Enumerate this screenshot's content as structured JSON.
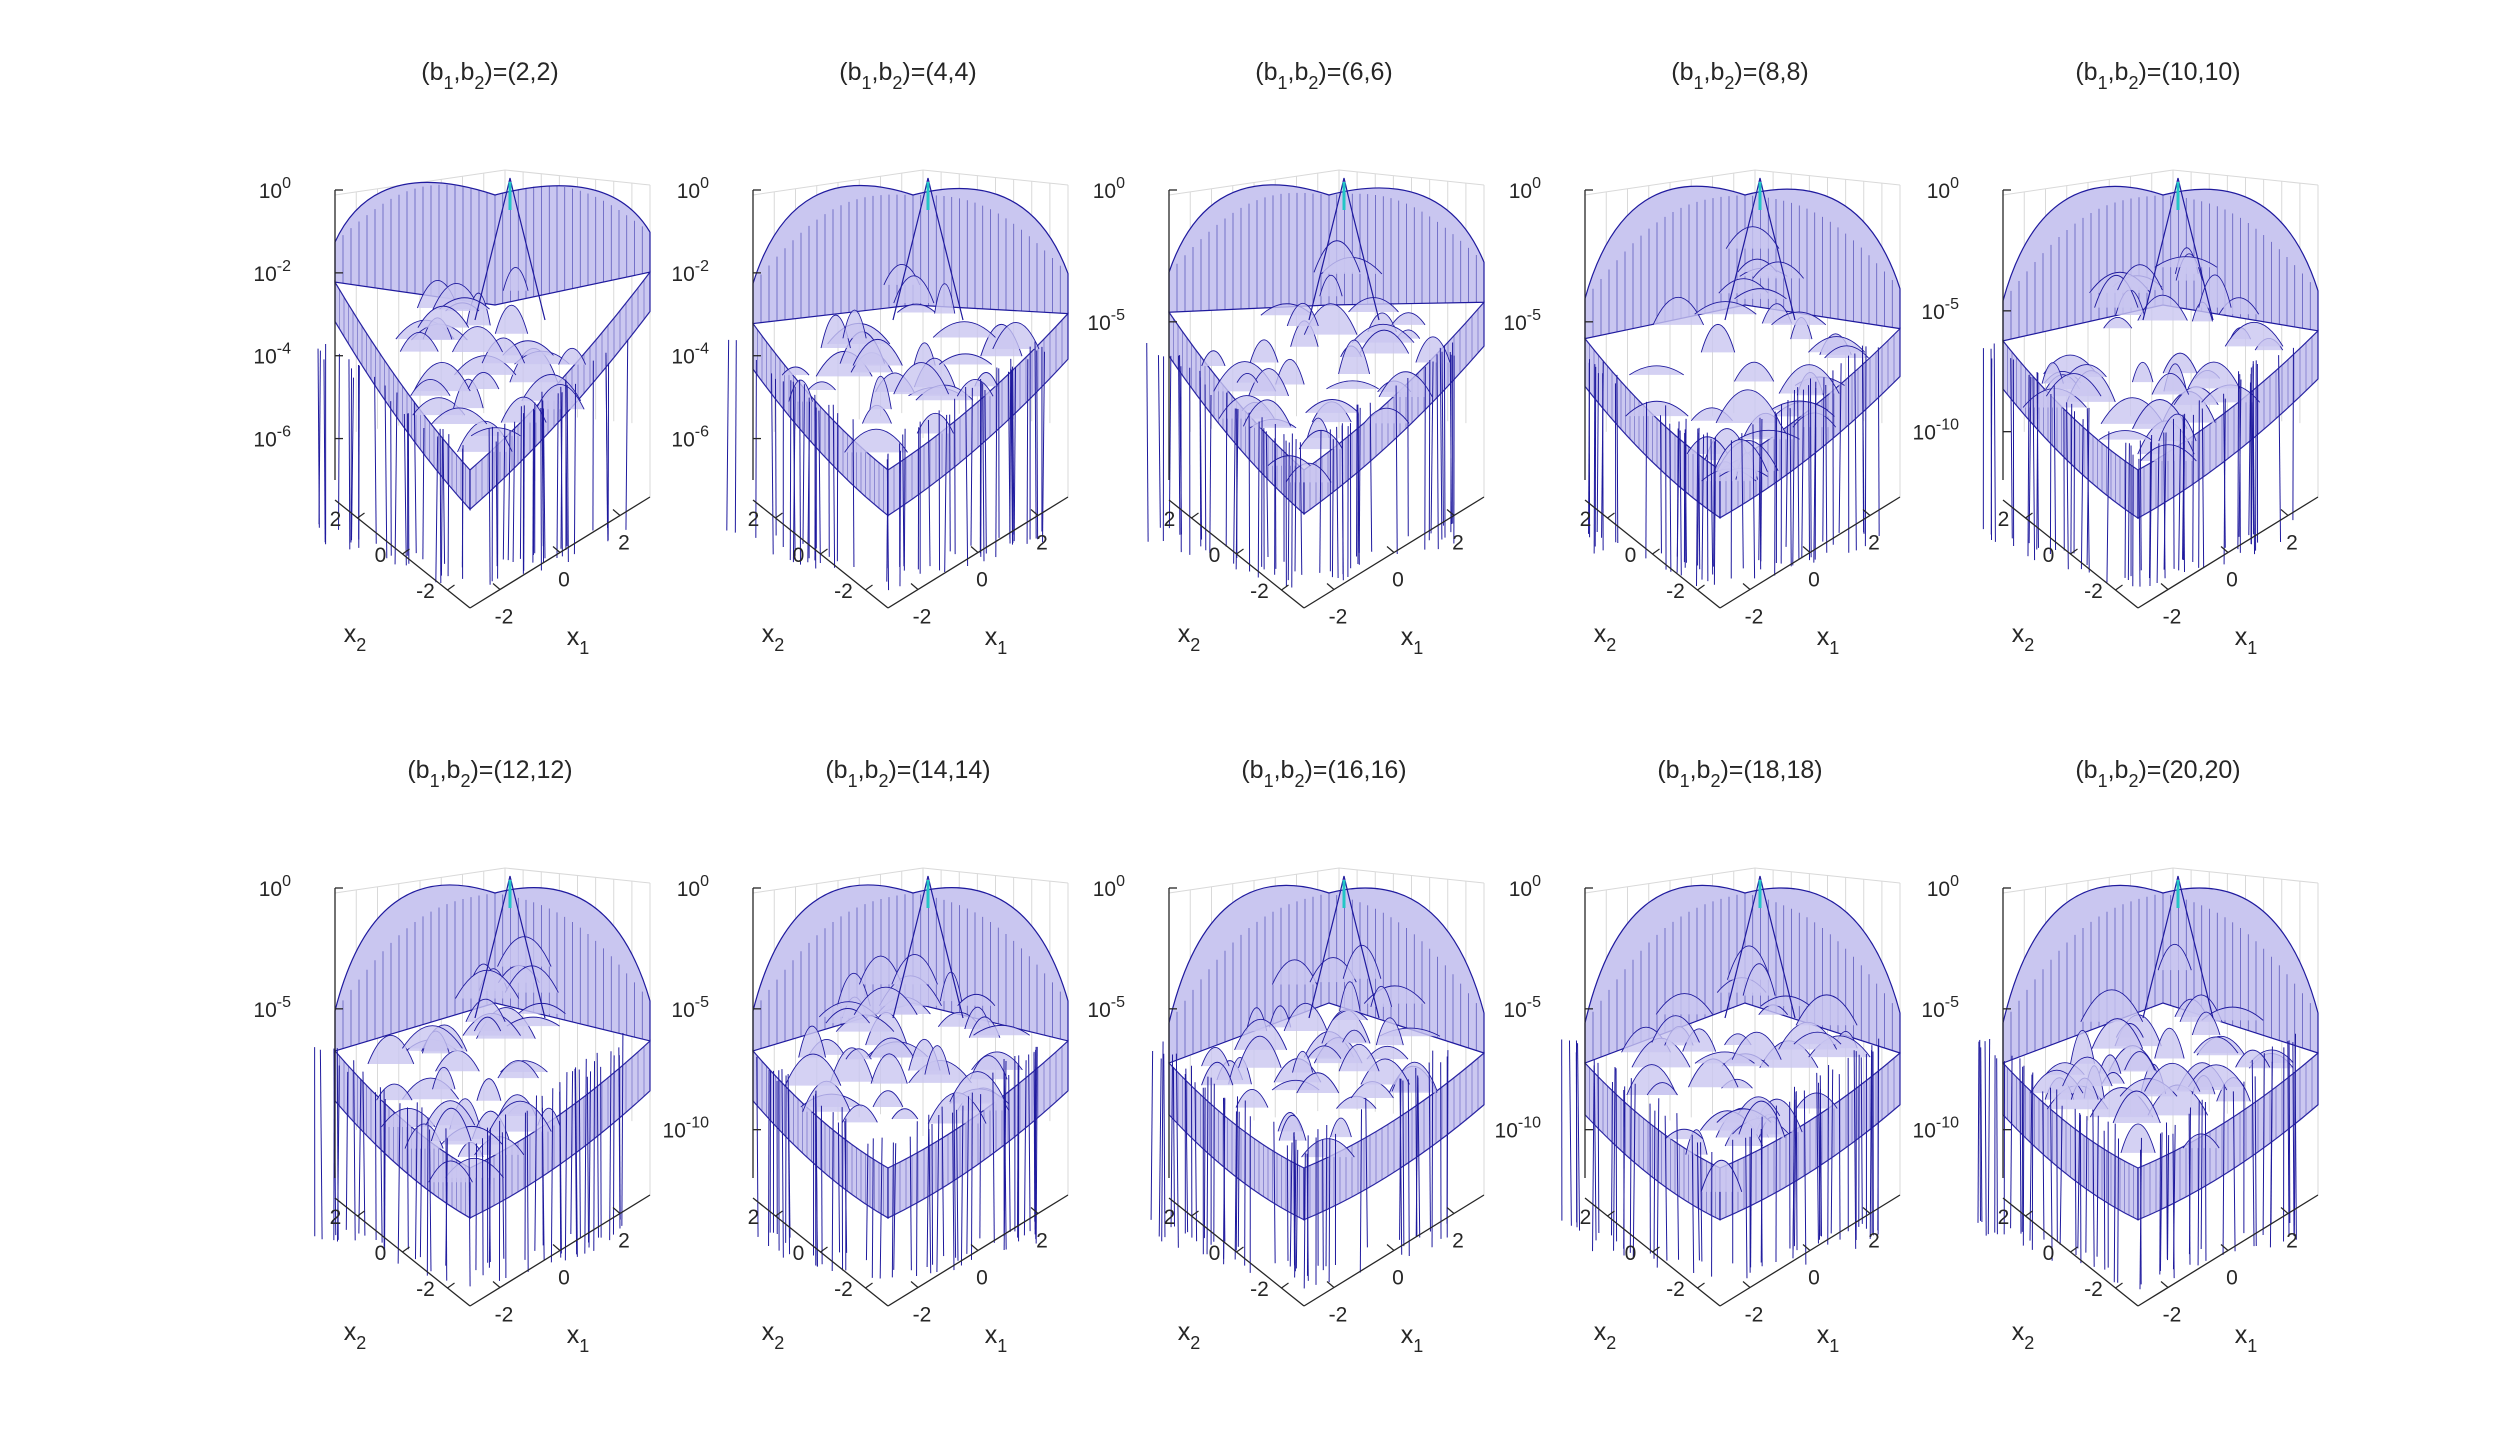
{
  "figure": {
    "background": "#ffffff",
    "line_color": "#1f1a9e",
    "fill_color": "#c9c6f0",
    "peak_color": "#22c6c6",
    "axis_color": "#262626",
    "grid_color": "#d9d9d9"
  },
  "chart_data": [
    {
      "type": "surface",
      "title": "(b1,b2)=(2,2)",
      "title_parts": [
        "(b",
        "1",
        ",b",
        "2",
        ")=(2,2)"
      ],
      "xlabel": "x",
      "xlabel_sub": "1",
      "ylabel": "x",
      "ylabel_sub": "2",
      "zscale": "log",
      "x_ticks": [
        "-2",
        "0",
        "2"
      ],
      "y_ticks": [
        "-2",
        "0",
        "2"
      ],
      "z_ticks": [
        {
          "base": "10",
          "exp": "0"
        },
        {
          "base": "10",
          "exp": "-2"
        },
        {
          "base": "10",
          "exp": "-4"
        },
        {
          "base": "10",
          "exp": "-6"
        }
      ],
      "zlim_exp": [
        -7,
        0
      ],
      "edge_exp": -1.5,
      "floor_exp": -6.8
    },
    {
      "type": "surface",
      "title": "(b1,b2)=(4,4)",
      "title_parts": [
        "(b",
        "1",
        ",b",
        "2",
        ")=(4,4)"
      ],
      "xlabel": "x",
      "xlabel_sub": "1",
      "ylabel": "x",
      "ylabel_sub": "2",
      "zscale": "log",
      "x_ticks": [
        "-2",
        "0",
        "2"
      ],
      "y_ticks": [
        "-2",
        "0",
        "2"
      ],
      "z_ticks": [
        {
          "base": "10",
          "exp": "0"
        },
        {
          "base": "10",
          "exp": "-2"
        },
        {
          "base": "10",
          "exp": "-4"
        },
        {
          "base": "10",
          "exp": "-6"
        }
      ],
      "zlim_exp": [
        -7,
        0
      ],
      "edge_exp": -2.5,
      "floor_exp": -6.9
    },
    {
      "type": "surface",
      "title": "(b1,b2)=(6,6)",
      "title_parts": [
        "(b",
        "1",
        ",b",
        "2",
        ")=(6,6)"
      ],
      "xlabel": "x",
      "xlabel_sub": "1",
      "ylabel": "x",
      "ylabel_sub": "2",
      "zscale": "log",
      "x_ticks": [
        "-2",
        "0",
        "2"
      ],
      "y_ticks": [
        "-2",
        "0",
        "2"
      ],
      "z_ticks": [
        {
          "base": "10",
          "exp": "0"
        },
        {
          "base": "10",
          "exp": "-5"
        }
      ],
      "zlim_exp": [
        -11,
        0
      ],
      "edge_exp": -3.5,
      "floor_exp": -10.5
    },
    {
      "type": "surface",
      "title": "(b1,b2)=(8,8)",
      "title_parts": [
        "(b",
        "1",
        ",b",
        "2",
        ")=(8,8)"
      ],
      "xlabel": "x",
      "xlabel_sub": "1",
      "ylabel": "x",
      "ylabel_sub": "2",
      "zscale": "log",
      "x_ticks": [
        "-2",
        "0",
        "2"
      ],
      "y_ticks": [
        "-2",
        "0",
        "2"
      ],
      "z_ticks": [
        {
          "base": "10",
          "exp": "0"
        },
        {
          "base": "10",
          "exp": "-5"
        }
      ],
      "zlim_exp": [
        -11,
        0
      ],
      "edge_exp": -4.5,
      "floor_exp": -10.8
    },
    {
      "type": "surface",
      "title": "(b1,b2)=(10,10)",
      "title_parts": [
        "(b",
        "1",
        ",b",
        "2",
        ")=(10,10)"
      ],
      "xlabel": "x",
      "xlabel_sub": "1",
      "ylabel": "x",
      "ylabel_sub": "2",
      "zscale": "log",
      "x_ticks": [
        "-2",
        "0",
        "2"
      ],
      "y_ticks": [
        "-2",
        "0",
        "2"
      ],
      "z_ticks": [
        {
          "base": "10",
          "exp": "0"
        },
        {
          "base": "10",
          "exp": "-5"
        },
        {
          "base": "10",
          "exp": "-10"
        }
      ],
      "zlim_exp": [
        -12,
        0
      ],
      "edge_exp": -5.0,
      "floor_exp": -11.5
    },
    {
      "type": "surface",
      "title": "(b1,b2)=(12,12)",
      "title_parts": [
        "(b",
        "1",
        ",b",
        "2",
        ")=(12,12)"
      ],
      "xlabel": "x",
      "xlabel_sub": "1",
      "ylabel": "x",
      "ylabel_sub": "2",
      "zscale": "log",
      "x_ticks": [
        "-2",
        "0",
        "2"
      ],
      "y_ticks": [
        "-2",
        "0",
        "2"
      ],
      "z_ticks": [
        {
          "base": "10",
          "exp": "0"
        },
        {
          "base": "10",
          "exp": "-5"
        }
      ],
      "zlim_exp": [
        -12,
        0
      ],
      "edge_exp": -5.5,
      "floor_exp": -11.8
    },
    {
      "type": "surface",
      "title": "(b1,b2)=(14,14)",
      "title_parts": [
        "(b",
        "1",
        ",b",
        "2",
        ")=(14,14)"
      ],
      "xlabel": "x",
      "xlabel_sub": "1",
      "ylabel": "x",
      "ylabel_sub": "2",
      "zscale": "log",
      "x_ticks": [
        "-2",
        "0",
        "2"
      ],
      "y_ticks": [
        "-2",
        "0",
        "2"
      ],
      "z_ticks": [
        {
          "base": "10",
          "exp": "0"
        },
        {
          "base": "10",
          "exp": "-5"
        },
        {
          "base": "10",
          "exp": "-10"
        }
      ],
      "zlim_exp": [
        -12,
        0
      ],
      "edge_exp": -5.5,
      "floor_exp": -11.8
    },
    {
      "type": "surface",
      "title": "(b1,b2)=(16,16)",
      "title_parts": [
        "(b",
        "1",
        ",b",
        "2",
        ")=(16,16)"
      ],
      "xlabel": "x",
      "xlabel_sub": "1",
      "ylabel": "x",
      "ylabel_sub": "2",
      "zscale": "log",
      "x_ticks": [
        "-2",
        "0",
        "2"
      ],
      "y_ticks": [
        "-2",
        "0",
        "2"
      ],
      "z_ticks": [
        {
          "base": "10",
          "exp": "0"
        },
        {
          "base": "10",
          "exp": "-5"
        }
      ],
      "zlim_exp": [
        -12,
        0
      ],
      "edge_exp": -6.0,
      "floor_exp": -11.9
    },
    {
      "type": "surface",
      "title": "(b1,b2)=(18,18)",
      "title_parts": [
        "(b",
        "1",
        ",b",
        "2",
        ")=(18,18)"
      ],
      "xlabel": "x",
      "xlabel_sub": "1",
      "ylabel": "x",
      "ylabel_sub": "2",
      "zscale": "log",
      "x_ticks": [
        "-2",
        "0",
        "2"
      ],
      "y_ticks": [
        "-2",
        "0",
        "2"
      ],
      "z_ticks": [
        {
          "base": "10",
          "exp": "0"
        },
        {
          "base": "10",
          "exp": "-5"
        },
        {
          "base": "10",
          "exp": "-10"
        }
      ],
      "zlim_exp": [
        -12,
        0
      ],
      "edge_exp": -6.0,
      "floor_exp": -11.9
    },
    {
      "type": "surface",
      "title": "(b1,b2)=(20,20)",
      "title_parts": [
        "(b",
        "1",
        ",b",
        "2",
        ")=(20,20)"
      ],
      "xlabel": "x",
      "xlabel_sub": "1",
      "ylabel": "x",
      "ylabel_sub": "2",
      "zscale": "log",
      "x_ticks": [
        "-2",
        "0",
        "2"
      ],
      "y_ticks": [
        "-2",
        "0",
        "2"
      ],
      "z_ticks": [
        {
          "base": "10",
          "exp": "0"
        },
        {
          "base": "10",
          "exp": "-5"
        },
        {
          "base": "10",
          "exp": "-10"
        }
      ],
      "zlim_exp": [
        -12,
        0
      ],
      "edge_exp": -6.0,
      "floor_exp": -11.9
    }
  ]
}
